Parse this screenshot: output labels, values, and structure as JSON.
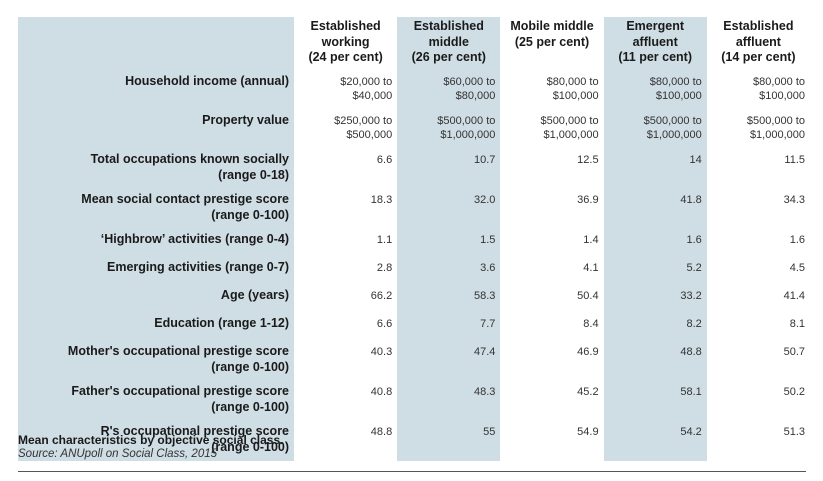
{
  "table": {
    "columns": [
      "Established working (24 per cent)",
      "Established middle (26 per cent)",
      "Mobile middle (25 per cent)",
      "Emergent affluent (11 per cent)",
      "Established affluent (14 per cent)"
    ],
    "column_lines": [
      [
        "Established",
        "working",
        "(24 per cent)"
      ],
      [
        "Established",
        "middle",
        "(26 per cent)"
      ],
      [
        "Mobile middle",
        "(25 per cent)",
        ""
      ],
      [
        "Emergent",
        "affluent",
        "(11 per cent)"
      ],
      [
        "Established",
        "affluent",
        "(14 per cent)"
      ]
    ],
    "rows": [
      {
        "label": [
          "Household income (annual)"
        ],
        "values": [
          [
            "$20,000 to",
            "$40,000"
          ],
          [
            "$60,000 to",
            "$80,000"
          ],
          [
            "$80,000 to",
            "$100,000"
          ],
          [
            "$80,000 to",
            "$100,000"
          ],
          [
            "$80,000 to",
            "$100,000"
          ]
        ]
      },
      {
        "label": [
          "Property value"
        ],
        "values": [
          [
            "$250,000 to",
            "$500,000"
          ],
          [
            "$500,000 to",
            "$1,000,000"
          ],
          [
            "$500,000 to",
            "$1,000,000"
          ],
          [
            "$500,000 to",
            "$1,000,000"
          ],
          [
            "$500,000 to",
            "$1,000,000"
          ]
        ]
      },
      {
        "label": [
          "Total occupations known socially",
          "(range 0-18)"
        ],
        "values": [
          "6.6",
          "10.7",
          "12.5",
          "14",
          "11.5"
        ]
      },
      {
        "label": [
          "Mean social contact prestige score",
          "(range 0-100)"
        ],
        "values": [
          "18.3",
          "32.0",
          "36.9",
          "41.8",
          "34.3"
        ]
      },
      {
        "label": [
          "‘Highbrow’ activities (range 0-4)"
        ],
        "values": [
          "1.1",
          "1.5",
          "1.4",
          "1.6",
          "1.6"
        ]
      },
      {
        "label": [
          "Emerging activities (range 0-7)"
        ],
        "values": [
          "2.8",
          "3.6",
          "4.1",
          "5.2",
          "4.5"
        ]
      },
      {
        "label": [
          "Age (years)"
        ],
        "values": [
          "66.2",
          "58.3",
          "50.4",
          "33.2",
          "41.4"
        ]
      },
      {
        "label": [
          "Education (range 1-12)"
        ],
        "values": [
          "6.6",
          "7.7",
          "8.4",
          "8.2",
          "8.1"
        ]
      },
      {
        "label": [
          "Mother's occupational prestige score",
          "(range 0-100)"
        ],
        "values": [
          "40.3",
          "47.4",
          "46.9",
          "48.8",
          "50.7"
        ]
      },
      {
        "label": [
          "Father's occupational prestige score",
          "(range 0-100)"
        ],
        "values": [
          "40.8",
          "48.3",
          "45.2",
          "58.1",
          "50.2"
        ]
      },
      {
        "label": [
          "R's occupational prestige score",
          "(range 0-100)"
        ],
        "values": [
          "48.8",
          "55",
          "54.9",
          "54.2",
          "51.3"
        ]
      }
    ]
  },
  "caption": "Mean characteristics by objective social class.",
  "source": "Source: ANUpoll on Social Class, 2015",
  "colors": {
    "shade": "#cfdde4",
    "plain": "#ffffff"
  }
}
